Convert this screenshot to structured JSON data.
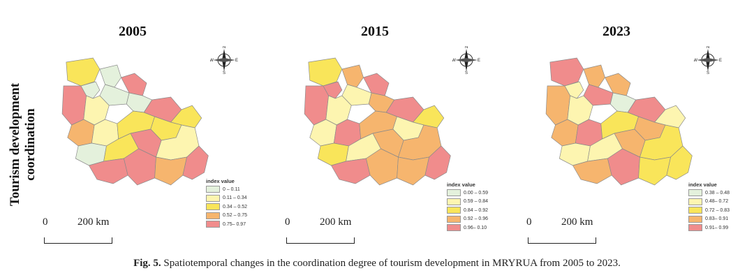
{
  "figure": {
    "y_label_line1": "Tourism development",
    "y_label_line2": "coordination",
    "caption_label": "Fig. 5.",
    "caption_text": "Spatiotemporal changes in the coordination degree of tourism development in MRYRUA from 2005 to 2023."
  },
  "compass_labels": {
    "n": "N",
    "s": "S",
    "e": "E",
    "w": "W"
  },
  "scale": {
    "zero": "0",
    "distance": "200 km"
  },
  "legend_title": "index value",
  "panels": [
    {
      "year": "2005",
      "legend": [
        {
          "label": "0 – 0.11",
          "color": "#e4f1dc"
        },
        {
          "label": "0.11 – 0.34",
          "color": "#fdf5b0"
        },
        {
          "label": "0.34 – 0.52",
          "color": "#f9e55a"
        },
        {
          "label": "0.52 – 0.75",
          "color": "#f6b56e"
        },
        {
          "label": "0.75– 0.97",
          "color": "#f08c8c"
        }
      ],
      "fills": [
        "#f9e55a",
        "#f08c8c",
        "#e4f1dc",
        "#e4f1dc",
        "#f08c8c",
        "#e4f1dc",
        "#fdf5b0",
        "#e4f1dc",
        "#f08c8c",
        "#f9e55a",
        "#f6b56e",
        "#fdf5b0",
        "#f9e55a",
        "#f9e55a",
        "#e4f1dc",
        "#f9e55a",
        "#f08c8c",
        "#fdf5b0",
        "#f08c8c",
        "#f08c8c",
        "#f6b56e",
        "#f08c8c"
      ]
    },
    {
      "year": "2015",
      "legend": [
        {
          "label": "0.00 – 0.59",
          "color": "#e4f1dc"
        },
        {
          "label": "0.59 – 0.84",
          "color": "#fdf5b0"
        },
        {
          "label": "0.84 – 0.92",
          "color": "#f9e55a"
        },
        {
          "label": "0.92 – 0.96",
          "color": "#f6b56e"
        },
        {
          "label": "0.96– 0.10",
          "color": "#f08c8c"
        }
      ],
      "fills": [
        "#f9e55a",
        "#f08c8c",
        "#f08c8c",
        "#f6b56e",
        "#f08c8c",
        "#fdf5b0",
        "#fdf5b0",
        "#f6b56e",
        "#f08c8c",
        "#f9e55a",
        "#fdf5b0",
        "#f08c8c",
        "#f6b56e",
        "#fdf5b0",
        "#f9e55a",
        "#fdf5b0",
        "#f6b56e",
        "#f6b56e",
        "#f08c8c",
        "#f6b56e",
        "#f6b56e",
        "#f08c8c"
      ]
    },
    {
      "year": "2023",
      "legend": [
        {
          "label": "0.38 – 0.48",
          "color": "#e4f1dc"
        },
        {
          "label": "0.48– 0.72",
          "color": "#fdf5b0"
        },
        {
          "label": "0.72 – 0.83",
          "color": "#f9e55a"
        },
        {
          "label": "0.83– 0.91",
          "color": "#f6b56e"
        },
        {
          "label": "0.91– 0.99",
          "color": "#f08c8c"
        }
      ],
      "fills": [
        "#f08c8c",
        "#f6b56e",
        "#fdf5b0",
        "#f6b56e",
        "#f6b56e",
        "#f08c8c",
        "#fdf5b0",
        "#e4f1dc",
        "#f08c8c",
        "#fdf5b0",
        "#f6b56e",
        "#f08c8c",
        "#f9e55a",
        "#f6b56e",
        "#fdf5b0",
        "#fdf5b0",
        "#f6b56e",
        "#f9e55a",
        "#f6b56e",
        "#f08c8c",
        "#f9e55a",
        "#f9e55a"
      ]
    }
  ]
}
